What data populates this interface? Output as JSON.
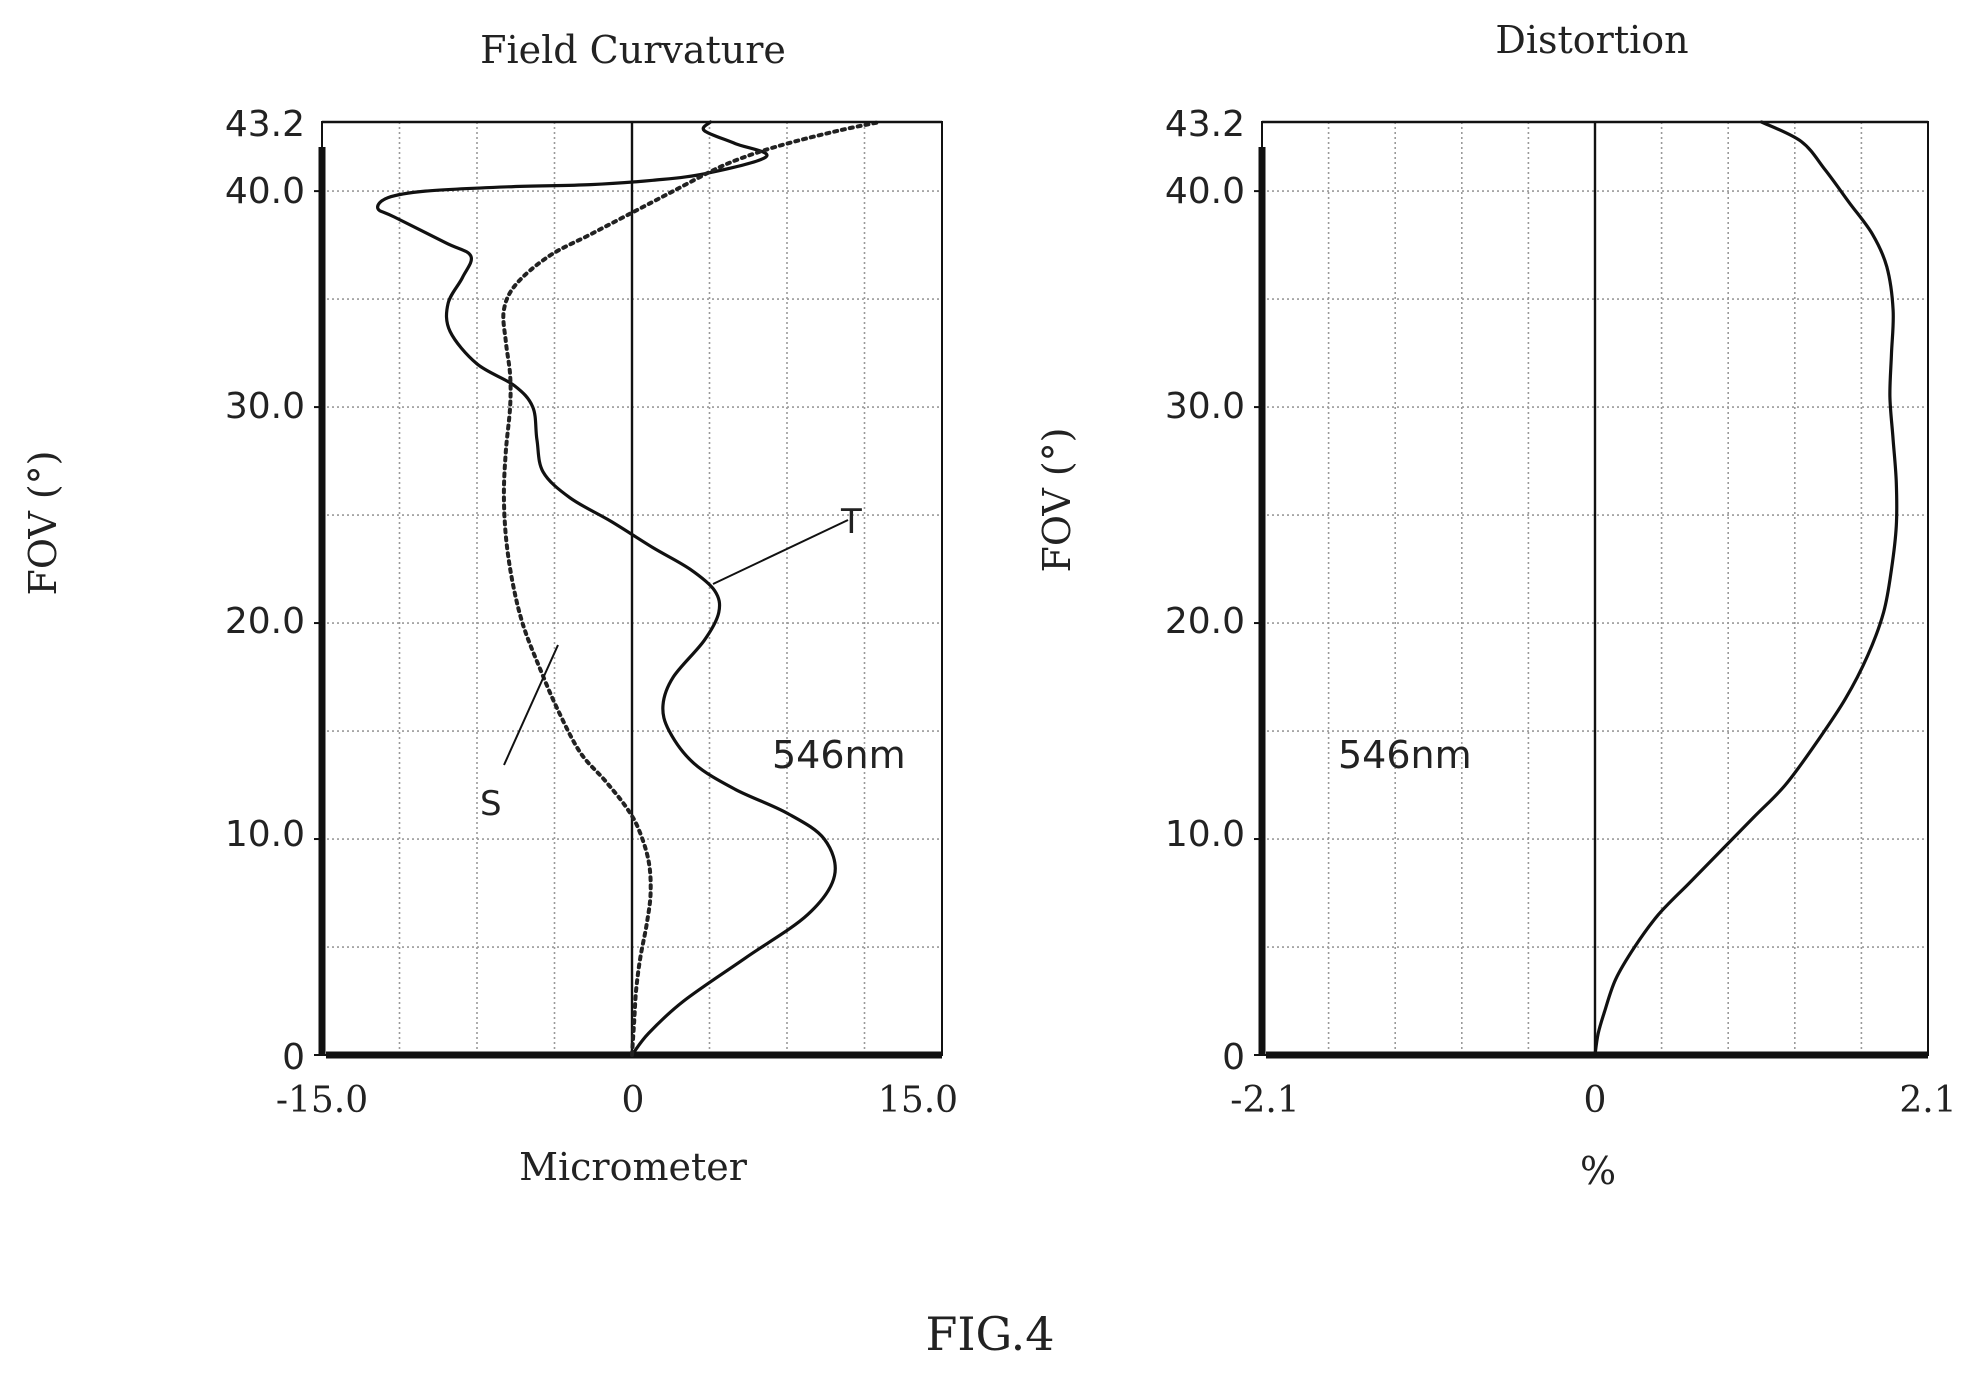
{
  "figure_label": "FIG.4",
  "chart_data": [
    {
      "type": "line",
      "title": "Field Curvature",
      "xlabel": "Micrometer",
      "ylabel": "FOV (°)",
      "xlim": [
        -15,
        15
      ],
      "ylim": [
        0,
        43.2
      ],
      "x_tick_labels": [
        "-15.0",
        "0",
        "15.0"
      ],
      "y_tick_labels": [
        "0",
        "10.0",
        "20.0",
        "30.0",
        "40.0",
        "43.2"
      ],
      "grid": true,
      "annotation": "546nm",
      "series": [
        {
          "name": "T",
          "style": "solid",
          "points": [
            [
              0,
              0
            ],
            [
              0.8,
              1
            ],
            [
              2.5,
              2.5
            ],
            [
              5.5,
              4.5
            ],
            [
              8.5,
              6.5
            ],
            [
              9.8,
              8.3
            ],
            [
              9.3,
              10
            ],
            [
              7.5,
              11.2
            ],
            [
              5,
              12.3
            ],
            [
              3,
              13.5
            ],
            [
              1.8,
              15
            ],
            [
              1.5,
              16.2
            ],
            [
              2,
              17.5
            ],
            [
              3.5,
              19.2
            ],
            [
              4.2,
              20.5
            ],
            [
              4,
              21.5
            ],
            [
              2.8,
              22.5
            ],
            [
              1,
              23.5
            ],
            [
              -1,
              24.7
            ],
            [
              -3,
              25.8
            ],
            [
              -4.3,
              27
            ],
            [
              -4.6,
              28.5
            ],
            [
              -4.8,
              30
            ],
            [
              -5.7,
              31
            ],
            [
              -7.5,
              32
            ],
            [
              -8.8,
              33.5
            ],
            [
              -8.9,
              34.8
            ],
            [
              -8.2,
              36
            ],
            [
              -7.8,
              37
            ],
            [
              -9,
              37.6
            ],
            [
              -11.5,
              38.8
            ],
            [
              -12.3,
              39.2
            ],
            [
              -11.8,
              39.7
            ],
            [
              -10,
              40
            ],
            [
              -6,
              40.2
            ],
            [
              -2,
              40.3
            ],
            [
              1,
              40.5
            ],
            [
              3.5,
              40.8
            ],
            [
              6.5,
              41.6
            ],
            [
              5,
              42.2
            ],
            [
              3.5,
              42.8
            ],
            [
              3.8,
              43.2
            ]
          ]
        },
        {
          "name": "S",
          "style": "dotted",
          "points": [
            [
              0,
              0
            ],
            [
              0.1,
              1.5
            ],
            [
              0.2,
              3
            ],
            [
              0.4,
              4.5
            ],
            [
              0.7,
              6
            ],
            [
              0.9,
              7.5
            ],
            [
              0.8,
              9
            ],
            [
              0.3,
              10.5
            ],
            [
              -0.3,
              11.5
            ],
            [
              -1.3,
              12.7
            ],
            [
              -2.5,
              14
            ],
            [
              -3.6,
              16
            ],
            [
              -4.5,
              18
            ],
            [
              -5.3,
              20
            ],
            [
              -5.8,
              22
            ],
            [
              -6.1,
              24
            ],
            [
              -6.2,
              26
            ],
            [
              -6.1,
              28
            ],
            [
              -5.9,
              30
            ],
            [
              -5.9,
              31.5
            ],
            [
              -6.1,
              33
            ],
            [
              -6.2,
              34.5
            ],
            [
              -5.6,
              35.7
            ],
            [
              -4,
              37
            ],
            [
              -2,
              38
            ],
            [
              0,
              39
            ],
            [
              2,
              40
            ],
            [
              4,
              41
            ],
            [
              5.5,
              41.6
            ],
            [
              7.5,
              42.2
            ],
            [
              10,
              42.8
            ],
            [
              12,
              43.2
            ]
          ]
        }
      ]
    },
    {
      "type": "line",
      "title": "Distortion",
      "xlabel": "%",
      "ylabel": "FOV (°)",
      "xlim": [
        -2.1,
        2.1
      ],
      "ylim": [
        0,
        43.2
      ],
      "x_tick_labels": [
        "-2.1",
        "0",
        "2.1"
      ],
      "y_tick_labels": [
        "0",
        "10.0",
        "20.0",
        "30.0",
        "40.0",
        "43.2"
      ],
      "grid": true,
      "annotation": "546nm",
      "series": [
        {
          "style": "solid",
          "points": [
            [
              0,
              0
            ],
            [
              0.02,
              1
            ],
            [
              0.06,
              2
            ],
            [
              0.13,
              3.5
            ],
            [
              0.25,
              5
            ],
            [
              0.4,
              6.5
            ],
            [
              0.6,
              8
            ],
            [
              0.8,
              9.5
            ],
            [
              1.0,
              11
            ],
            [
              1.2,
              12.5
            ],
            [
              1.4,
              14.5
            ],
            [
              1.58,
              16.5
            ],
            [
              1.72,
              18.5
            ],
            [
              1.82,
              20.5
            ],
            [
              1.87,
              22.5
            ],
            [
              1.9,
              24.5
            ],
            [
              1.9,
              26.5
            ],
            [
              1.88,
              28.5
            ],
            [
              1.86,
              30.5
            ],
            [
              1.87,
              32.5
            ],
            [
              1.88,
              34.5
            ],
            [
              1.84,
              36.5
            ],
            [
              1.75,
              38
            ],
            [
              1.6,
              39.5
            ],
            [
              1.45,
              41
            ],
            [
              1.3,
              42.3
            ],
            [
              1.05,
              43.2
            ]
          ]
        }
      ]
    }
  ]
}
